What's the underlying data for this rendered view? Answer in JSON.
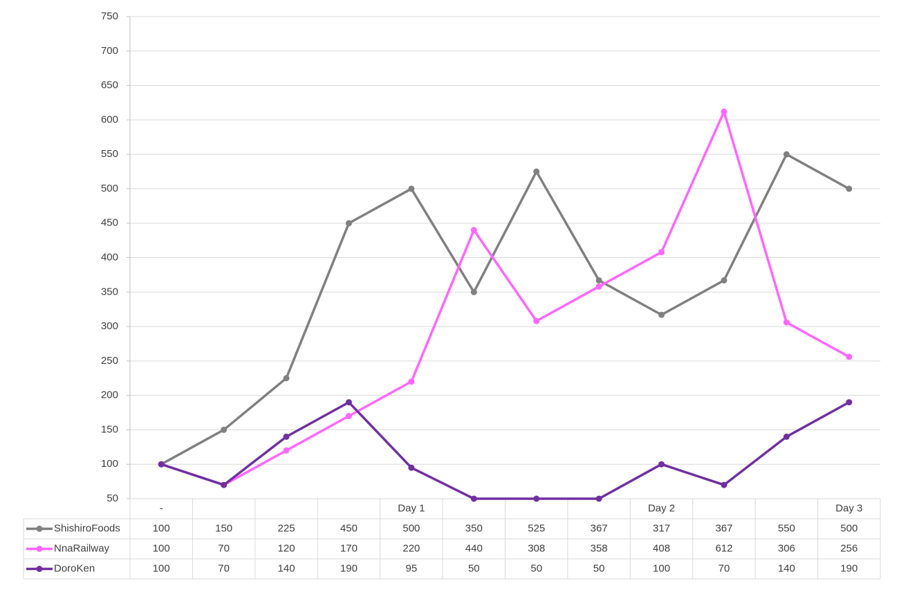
{
  "chart_data": {
    "type": "line",
    "categories": [
      "-",
      null,
      null,
      null,
      "Day 1",
      null,
      null,
      null,
      "Day 2",
      null,
      null,
      "Day 3"
    ],
    "series": [
      {
        "name": "ShishiroFoods",
        "color": "#808080",
        "values": [
          100,
          150,
          225,
          450,
          500,
          350,
          525,
          367,
          317,
          367,
          550,
          500
        ]
      },
      {
        "name": "NnaRailway",
        "color": "#ff66ff",
        "values": [
          100,
          70,
          120,
          170,
          220,
          440,
          308,
          358,
          408,
          612,
          306,
          256
        ]
      },
      {
        "name": "DoroKen",
        "color": "#7030a0",
        "values": [
          100,
          70,
          140,
          190,
          95,
          50,
          50,
          50,
          100,
          70,
          140,
          190
        ]
      }
    ],
    "ylim": [
      50,
      750
    ],
    "yticks": [
      50,
      100,
      150,
      200,
      250,
      300,
      350,
      400,
      450,
      500,
      550,
      600,
      650,
      700,
      750
    ],
    "grid": true,
    "data_table": true
  }
}
